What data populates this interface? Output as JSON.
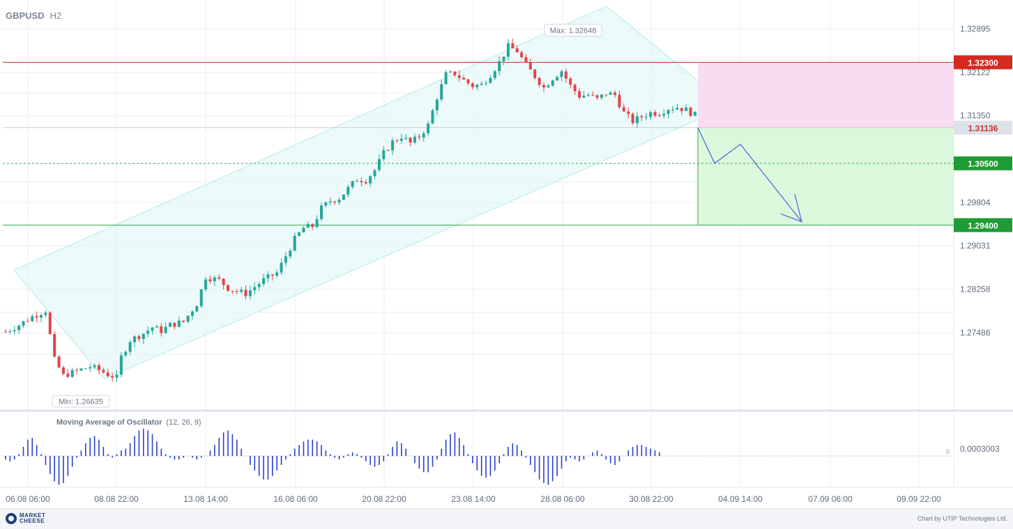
{
  "header": {
    "symbol": "GBPUSD",
    "timeframe": "H2"
  },
  "chart_data": {
    "type": "candlestick",
    "y_ticks": [
      "1.32895",
      "1.32122",
      "1.31350",
      "1.29804",
      "1.29031",
      "1.28258",
      "1.27486"
    ],
    "x_ticks": [
      "06.08 06:00",
      "08.08 22:00",
      "13.08 14:00",
      "16.08 06:00",
      "20.08 22:00",
      "23.08 14:00",
      "28.08 06:00",
      "30.08 22:00",
      "04.09 14:00",
      "07.09 06:00",
      "09.09 22:00"
    ],
    "ylim": [
      1.2612,
      1.3336
    ],
    "max_label": "Max: 1.32648",
    "min_label": "Min: 1.26635",
    "price_path": [
      [
        0,
        1.275
      ],
      [
        3,
        1.2762
      ],
      [
        6,
        1.2777
      ],
      [
        9,
        1.2788
      ],
      [
        11,
        1.27
      ],
      [
        13,
        1.2672
      ],
      [
        16,
        1.268
      ],
      [
        19,
        1.2688
      ],
      [
        21,
        1.2682
      ],
      [
        23,
        1.2674
      ],
      [
        25,
        1.2668
      ],
      [
        26,
        1.2705
      ],
      [
        28,
        1.2735
      ],
      [
        31,
        1.2747
      ],
      [
        33,
        1.2758
      ],
      [
        35,
        1.2752
      ],
      [
        37,
        1.2762
      ],
      [
        40,
        1.2768
      ],
      [
        43,
        1.28
      ],
      [
        45,
        1.2848
      ],
      [
        48,
        1.2842
      ],
      [
        50,
        1.2828
      ],
      [
        52,
        1.2822
      ],
      [
        54,
        1.2818
      ],
      [
        56,
        1.283
      ],
      [
        58,
        1.2842
      ],
      [
        61,
        1.2855
      ],
      [
        63,
        1.2885
      ],
      [
        65,
        1.2915
      ],
      [
        67,
        1.2935
      ],
      [
        69,
        1.2938
      ],
      [
        71,
        1.297
      ],
      [
        73,
        1.2983
      ],
      [
        75,
        1.2988
      ],
      [
        77,
        1.3005
      ],
      [
        79,
        1.3022
      ],
      [
        81,
        1.302
      ],
      [
        83,
        1.3038
      ],
      [
        85,
        1.3068
      ],
      [
        87,
        1.3088
      ],
      [
        89,
        1.3098
      ],
      [
        91,
        1.3086
      ],
      [
        93,
        1.3098
      ],
      [
        95,
        1.3118
      ],
      [
        97,
        1.3168
      ],
      [
        99,
        1.3208
      ],
      [
        101,
        1.321
      ],
      [
        103,
        1.3198
      ],
      [
        105,
        1.3188
      ],
      [
        107,
        1.319
      ],
      [
        109,
        1.3208
      ],
      [
        111,
        1.323
      ],
      [
        113,
        1.3258
      ],
      [
        115,
        1.325
      ],
      [
        117,
        1.3225
      ],
      [
        119,
        1.3205
      ],
      [
        121,
        1.3185
      ],
      [
        123,
        1.3202
      ],
      [
        125,
        1.3215
      ],
      [
        127,
        1.3188
      ],
      [
        129,
        1.317
      ],
      [
        131,
        1.3172
      ],
      [
        133,
        1.3164
      ],
      [
        135,
        1.3175
      ],
      [
        137,
        1.3172
      ],
      [
        139,
        1.314
      ],
      [
        141,
        1.3125
      ],
      [
        143,
        1.3133
      ],
      [
        145,
        1.314
      ],
      [
        147,
        1.314
      ],
      [
        149,
        1.3148
      ],
      [
        151,
        1.315
      ],
      [
        153,
        1.3145
      ],
      [
        155,
        1.3136
      ]
    ],
    "oscillator": {
      "title": "Moving Average of Oscillator",
      "params": "(12, 26, 9)",
      "level_label": "0.0003003",
      "zero_label": "0",
      "values": [
        -0.2,
        -0.3,
        -0.2,
        0.1,
        0.5,
        0.9,
        1.0,
        0.6,
        0.1,
        -0.5,
        -1.0,
        -1.4,
        -1.6,
        -1.5,
        -1.1,
        -0.6,
        -0.1,
        0.3,
        0.7,
        1.0,
        1.1,
        0.9,
        0.5,
        0.1,
        -0.1,
        0.1,
        0.3,
        0.4,
        0.7,
        1.1,
        1.4,
        1.5,
        1.4,
        1.2,
        0.8,
        0.4,
        0.1,
        -0.1,
        -0.2,
        -0.2,
        -0.1,
        0.0,
        -0.1,
        -0.2,
        -0.1,
        0.0,
        0.3,
        0.6,
        1.0,
        1.3,
        1.4,
        1.2,
        0.9,
        0.4,
        0.0,
        -0.5,
        -0.8,
        -1.1,
        -1.3,
        -1.3,
        -1.1,
        -0.8,
        -0.5,
        -0.2,
        0.1,
        0.4,
        0.6,
        0.8,
        0.9,
        0.9,
        0.8,
        0.6,
        0.3,
        0.1,
        -0.1,
        -0.2,
        -0.1,
        0.1,
        0.2,
        0.1,
        -0.1,
        -0.3,
        -0.5,
        -0.6,
        -0.5,
        -0.3,
        0.1,
        0.5,
        0.8,
        0.7,
        0.4,
        0.0,
        -0.4,
        -0.7,
        -0.9,
        -0.9,
        -0.6,
        -0.2,
        0.4,
        0.9,
        1.2,
        1.3,
        1.0,
        0.6,
        0.1,
        -0.4,
        -0.8,
        -1.1,
        -1.2,
        -1.1,
        -0.8,
        -0.4,
        0.1,
        0.5,
        0.7,
        0.6,
        0.3,
        -0.1,
        -0.5,
        -0.9,
        -1.3,
        -1.5,
        -1.6,
        -1.4,
        -1.1,
        -0.7,
        -0.3,
        -0.1,
        -0.2,
        -0.3,
        -0.2,
        0.0,
        0.2,
        0.3,
        0.1,
        -0.2,
        -0.4,
        -0.5,
        -0.3,
        0.0,
        0.3,
        0.5,
        0.6,
        0.6,
        0.5,
        0.4,
        0.3,
        0.2
      ]
    }
  },
  "levels": {
    "resistance": {
      "label": "1.32300",
      "value": 1.323,
      "color": "#d62a1f"
    },
    "current": {
      "label": "1.31136",
      "value": 1.31136
    },
    "target1": {
      "label": "1.30500",
      "value": 1.305,
      "color": "#1f9b35"
    },
    "target2": {
      "label": "1.29400",
      "value": 1.294,
      "color": "#1f9b35"
    }
  },
  "footer": {
    "logo": "MARKET CHEESE",
    "credit": "Chart by UTIP Technologies Ltd."
  }
}
